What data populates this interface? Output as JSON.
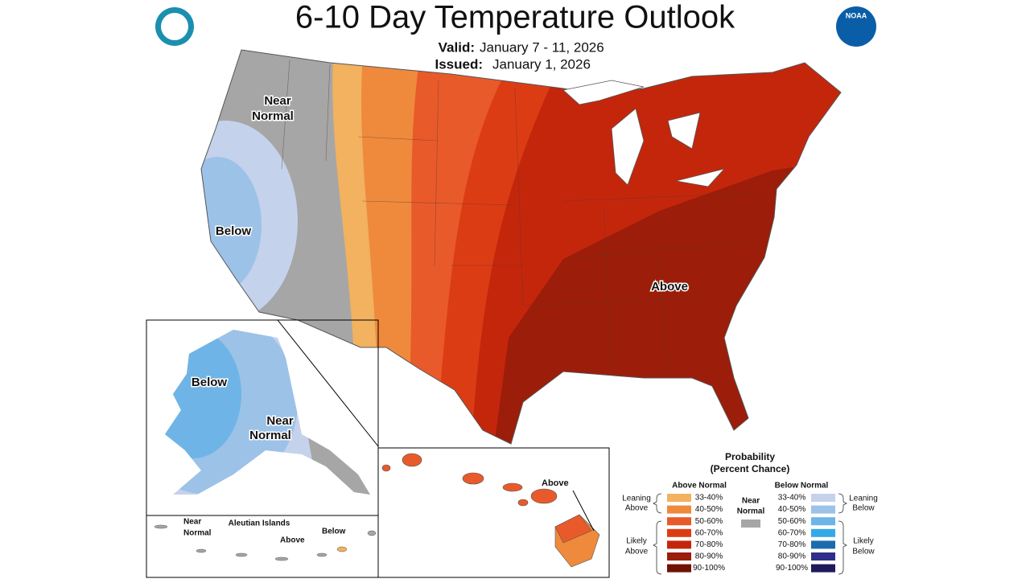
{
  "header": {
    "title": "6-10 Day Temperature Outlook",
    "valid": {
      "label": "Valid:",
      "value": "January 7 - 11, 2026"
    },
    "issued": {
      "label": "Issued:",
      "value": "January 1, 2026"
    },
    "noaa_logo": "NOAA"
  },
  "map": {
    "labels": [
      {
        "lines": [
          "Near",
          "Normal"
        ]
      },
      {
        "lines": [
          "Below"
        ]
      },
      {
        "lines": [
          "Above"
        ]
      }
    ]
  },
  "alaska": {
    "labels": [
      {
        "lines": [
          "Below"
        ]
      },
      {
        "lines": [
          "Near",
          "Normal"
        ]
      }
    ]
  },
  "aleutians": {
    "title": "Aleutian Islands",
    "labels": [
      {
        "lines": [
          "Near",
          "Normal"
        ]
      },
      {
        "lines": [
          "Above"
        ]
      },
      {
        "lines": [
          "Below"
        ]
      }
    ]
  },
  "hawaii": {
    "labels": [
      {
        "lines": [
          "Above"
        ]
      }
    ]
  },
  "legend": {
    "title": [
      "Probability",
      "(Percent Chance)"
    ],
    "above_normal": {
      "header": "Above Normal",
      "items": [
        {
          "label": "33-40%",
          "color": "#f2b25f"
        },
        {
          "label": "40-50%",
          "color": "#ef8a3c"
        },
        {
          "label": "50-60%",
          "color": "#e95a2b"
        },
        {
          "label": "60-70%",
          "color": "#dc3c14"
        },
        {
          "label": "70-80%",
          "color": "#c4260c"
        },
        {
          "label": "80-90%",
          "color": "#9c1d09"
        },
        {
          "label": "90-100%",
          "color": "#6f1204"
        }
      ],
      "leaning": [
        "Leaning",
        "Above"
      ],
      "likely": [
        "Likely",
        "Above"
      ]
    },
    "near_normal": {
      "lines": [
        "Near",
        "Normal"
      ],
      "color": "#a6a6a6"
    },
    "below_normal": {
      "header": "Below Normal",
      "items": [
        {
          "label": "33-40%",
          "color": "#c5d2ec"
        },
        {
          "label": "40-50%",
          "color": "#9cc2e8"
        },
        {
          "label": "50-60%",
          "color": "#6fb4e6"
        },
        {
          "label": "60-70%",
          "color": "#35a8e6"
        },
        {
          "label": "70-80%",
          "color": "#1b6bb0"
        },
        {
          "label": "80-90%",
          "color": "#2f2d8a"
        },
        {
          "label": "90-100%",
          "color": "#1f1a5c"
        }
      ],
      "leaning": [
        "Leaning",
        "Below"
      ],
      "likely": [
        "Likely",
        "Below"
      ]
    }
  }
}
